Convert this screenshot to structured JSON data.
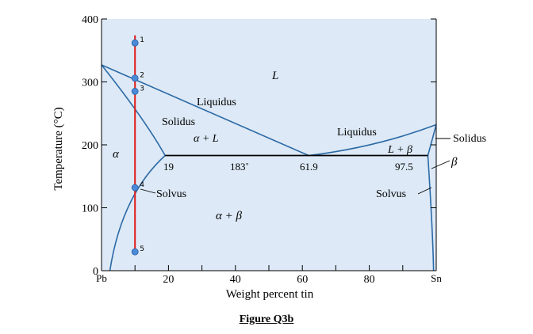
{
  "figure_caption": "Figure Q3b",
  "axes": {
    "ylabel": "Temperature (°C)",
    "xlabel": "Weight percent tin",
    "y_ticks": [
      "0",
      "100",
      "200",
      "300",
      "400"
    ],
    "y_tick_values": [
      0,
      100,
      200,
      300,
      400
    ],
    "x_ticks": [
      "20",
      "40",
      "60",
      "80"
    ],
    "x_tick_values": [
      20,
      40,
      60,
      80
    ],
    "x_left_label": "Pb",
    "x_right_label": "Sn",
    "xlim": [
      0,
      100
    ],
    "ylim": [
      0,
      400
    ]
  },
  "regions": {
    "liquid": "L",
    "alpha": "α",
    "alpha_plus_liquid": "α + L",
    "alpha_plus_beta": "α + β",
    "liquid_plus_beta": "L + β",
    "beta": "β"
  },
  "line_labels": {
    "liquidus_left": "Liquidus",
    "solidus_left": "Solidus",
    "liquidus_right": "Liquidus",
    "solidus_right": "Solidus",
    "solvus_left": "Solvus",
    "solvus_right": "Solvus"
  },
  "eutectic": {
    "temp_label": "183˚",
    "temperature": 183,
    "alpha_limit_label": "19",
    "alpha_limit": 19,
    "composition_label": "61.9",
    "composition": 61.9,
    "beta_limit_label": "97.5",
    "beta_limit": 97.5
  },
  "melting_points": {
    "pb": 327,
    "sn": 232
  },
  "alloy_line": {
    "composition": 10,
    "points": [
      {
        "label": "1",
        "temperature": 362
      },
      {
        "label": "2",
        "temperature": 306
      },
      {
        "label": "3",
        "temperature": 285
      },
      {
        "label": "4",
        "temperature": 132
      },
      {
        "label": "5",
        "temperature": 30
      }
    ]
  },
  "colors": {
    "plot_background": "#dde9f6",
    "phase_line": "#2b6aa6",
    "alloy_line": "#e01b1b",
    "point_fill": "#4a8ad8",
    "eutectic_line": "#000000"
  }
}
